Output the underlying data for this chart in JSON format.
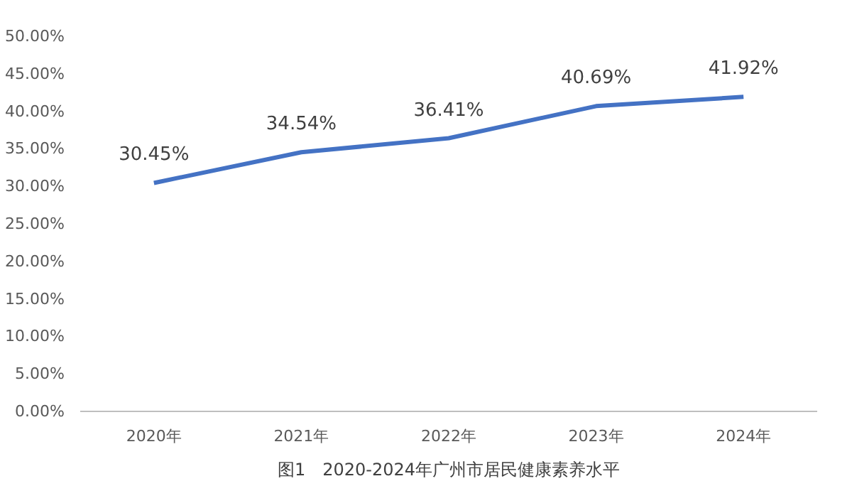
{
  "chart_data": {
    "type": "line",
    "title": "图1　2020-2024年广州市居民健康素养水平",
    "categories": [
      "2020年",
      "2021年",
      "2022年",
      "2023年",
      "2024年"
    ],
    "series": [
      {
        "color": "#4472c4",
        "values": [
          30.45,
          34.54,
          36.41,
          40.69,
          41.92
        ],
        "value_labels": [
          "30.45%",
          "34.54%",
          "36.41%",
          "40.69%",
          "41.92%"
        ]
      }
    ],
    "ylim": [
      0,
      50
    ],
    "yticks": [
      {
        "value": 0,
        "label": "0.00%"
      },
      {
        "value": 5,
        "label": "5.00%"
      },
      {
        "value": 10,
        "label": "10.00%"
      },
      {
        "value": 15,
        "label": "15.00%"
      },
      {
        "value": 20,
        "label": "20.00%"
      },
      {
        "value": 25,
        "label": "25.00%"
      },
      {
        "value": 30,
        "label": "30.00%"
      },
      {
        "value": 35,
        "label": "35.00%"
      },
      {
        "value": 40,
        "label": "40.00%"
      },
      {
        "value": 45,
        "label": "45.00%"
      },
      {
        "value": 50,
        "label": "50.00%"
      }
    ],
    "grid": false,
    "marker": "none",
    "line_style": "solid"
  }
}
